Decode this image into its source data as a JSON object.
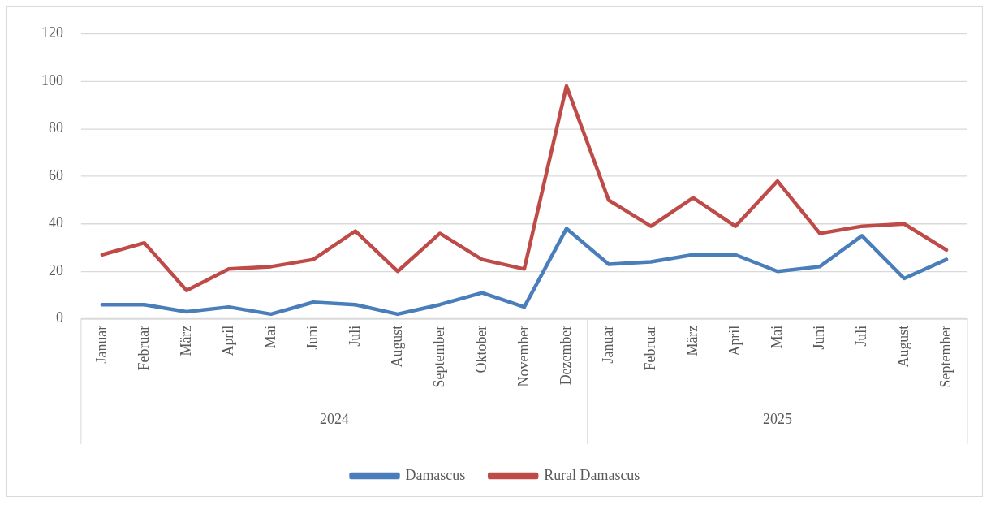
{
  "chart_data": {
    "type": "line",
    "categories": [
      "Januar",
      "Februar",
      "März",
      "April",
      "Mai",
      "Juni",
      "Juli",
      "August",
      "September",
      "Oktober",
      "November",
      "Dezember",
      "Januar",
      "Februar",
      "März",
      "April",
      "Mai",
      "Juni",
      "Juli",
      "August",
      "September"
    ],
    "annotations": [
      "2024",
      "2025"
    ],
    "series": [
      {
        "name": "Damascus",
        "color": "#4a7ebb",
        "values": [
          6,
          6,
          3,
          5,
          2,
          7,
          6,
          2,
          6,
          11,
          5,
          38,
          23,
          24,
          27,
          27,
          20,
          22,
          35,
          17,
          25
        ]
      },
      {
        "name": "Rural Damascus",
        "color": "#be4b48",
        "values": [
          27,
          32,
          12,
          21,
          22,
          25,
          37,
          20,
          36,
          25,
          21,
          98,
          50,
          39,
          51,
          39,
          58,
          36,
          39,
          40,
          29
        ]
      }
    ],
    "ylim": [
      0,
      120
    ],
    "yticks": [
      0,
      20,
      40,
      60,
      80,
      100,
      120
    ],
    "grid": "y",
    "legend": "bottom",
    "marker": "none",
    "line_style": "solid"
  }
}
